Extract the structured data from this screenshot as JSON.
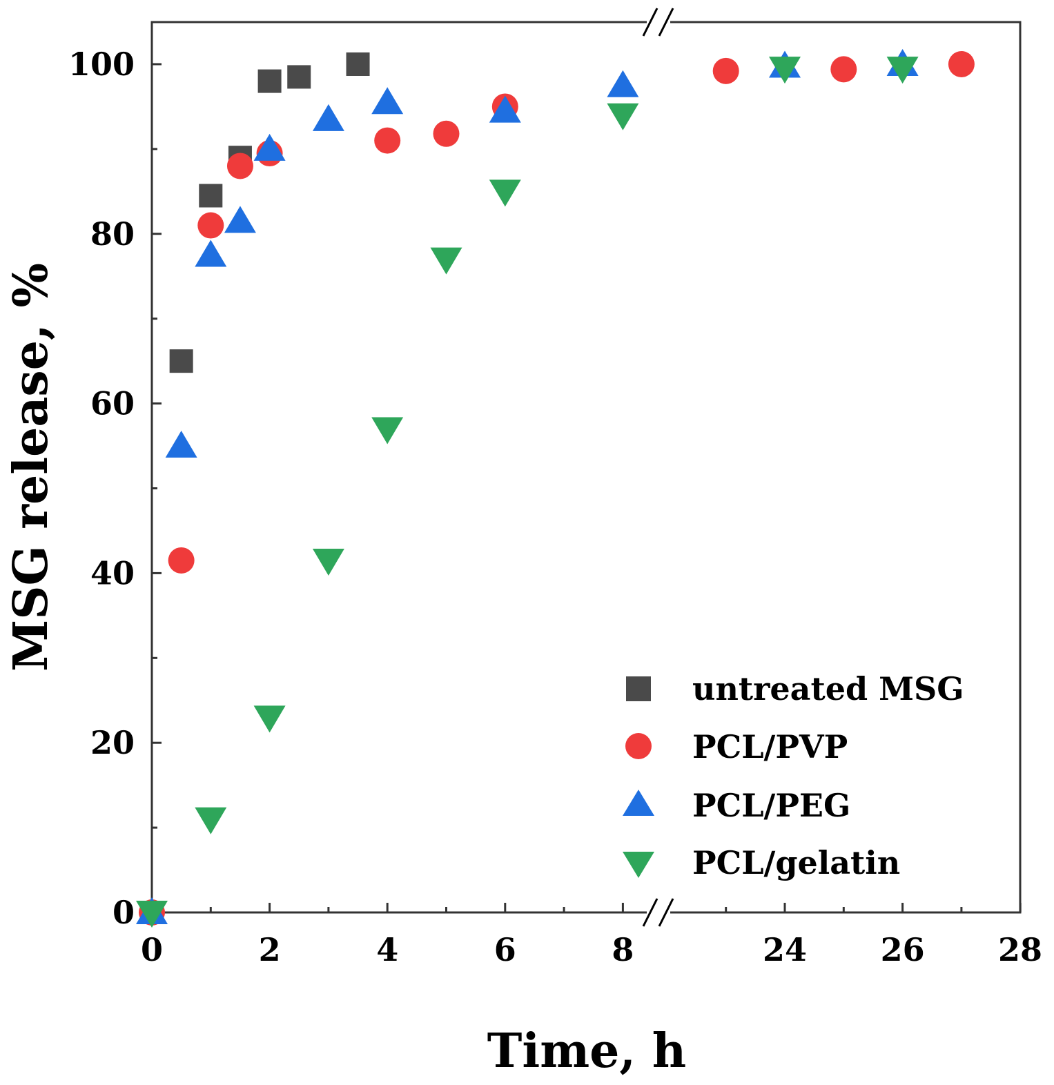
{
  "chart_data": {
    "type": "scatter",
    "title": "",
    "xlabel": "Time, h",
    "ylabel": "MSG release, %",
    "ylim": [
      0,
      105
    ],
    "y_ticks": [
      "0",
      "20",
      "40",
      "60",
      "80",
      "100"
    ],
    "x_axis_break": "between 8 and 24",
    "x_segments": [
      {
        "range": [
          0,
          8.9
        ],
        "ticks": [
          "0",
          "2",
          "4",
          "6",
          "8"
        ]
      },
      {
        "range": [
          22,
          28
        ],
        "ticks": [
          "24",
          "26",
          "28"
        ]
      }
    ],
    "legend_position": "bottom-right",
    "series": [
      {
        "name": "untreated MSG",
        "marker": "square",
        "color": "#4a4a4a",
        "x": [
          0,
          0.5,
          1,
          1.5,
          2,
          2.5,
          3.5
        ],
        "y": [
          0,
          65,
          84.5,
          89,
          98,
          98.5,
          100
        ]
      },
      {
        "name": "PCL/PVP",
        "marker": "circle",
        "color": "#ef3b3b",
        "x": [
          0,
          0.5,
          1,
          1.5,
          2,
          4,
          5,
          6,
          23,
          25,
          27
        ],
        "y": [
          0,
          41.5,
          81,
          88,
          89.5,
          91,
          91.8,
          95,
          99.2,
          99.4,
          100
        ]
      },
      {
        "name": "PCL/PEG",
        "marker": "triangle-up",
        "color": "#1f6fe0",
        "x": [
          0,
          0.5,
          1,
          1.5,
          2,
          3,
          4,
          6,
          8,
          24,
          26
        ],
        "y": [
          0,
          55,
          77.5,
          81.5,
          90,
          93.5,
          95.5,
          94.5,
          97.5,
          99.8,
          100
        ]
      },
      {
        "name": "PCL/gelatin",
        "marker": "triangle-down",
        "color": "#2ea65a",
        "x": [
          0,
          1,
          2,
          3,
          4,
          5,
          6,
          8,
          24,
          26
        ],
        "y": [
          0,
          11,
          23,
          41.5,
          57,
          77,
          85,
          94,
          99.5,
          99.5
        ]
      }
    ]
  }
}
